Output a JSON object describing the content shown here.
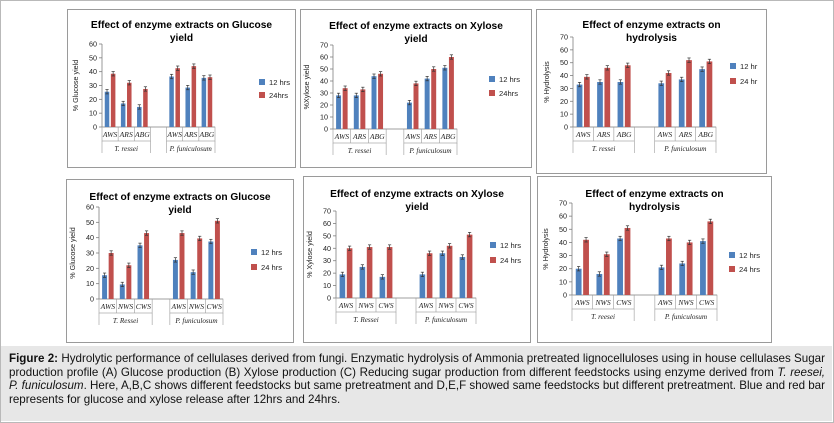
{
  "colors": {
    "blue": "#4f81bd",
    "red": "#c0504d",
    "error": "#333333",
    "axis": "#7f7f7f"
  },
  "caption": {
    "figure_label": "Figure 2:",
    "part1": " Hydrolytic performance of cellulases derived from fungi. Enzymatic hydrolysis of Ammonia pretreated lignocelluloses using in house cellulases Sugar production profile (A) Glucose production (B) Xylose production (C) Reducing sugar production from different feedstocks using enzyme derived from ",
    "species": "T. reesei, P. funiculosum",
    "part2": ". Here, A,B,C shows different feedstocks but same pretreatment and D,E,F showed same feedstocks but different pretreatment. Blue and red bar represents for glucose and xylose release after 12hrs and 24hrs."
  },
  "chart_data": [
    {
      "type": "bar",
      "title": [
        "Effect of enzyme extracts on Glucose",
        "yield"
      ],
      "ylabel": "% Glucose yield",
      "ylim": [
        0,
        60
      ],
      "yticks": [
        0,
        10,
        20,
        30,
        40,
        50,
        60
      ],
      "groups": [
        "T. ressei",
        "P. funiculosum"
      ],
      "categories": [
        "AWS",
        "ARS",
        "ABG",
        "AWS",
        "ARS",
        "ABG"
      ],
      "series": [
        {
          "name": "12 hrs",
          "values": [
            25.5,
            17,
            14.5,
            36.5,
            28.5,
            35.5
          ]
        },
        {
          "name": "24hrs",
          "values": [
            38.5,
            32,
            27.5,
            42.5,
            44,
            36
          ]
        }
      ],
      "legend": "right"
    },
    {
      "type": "bar",
      "title": [
        "Effect of enzyme extracts on Xylose",
        "yield"
      ],
      "ylabel": "%Xylose yield",
      "ylim": [
        0,
        70
      ],
      "yticks": [
        0,
        10,
        20,
        30,
        40,
        50,
        60,
        70
      ],
      "groups": [
        "T. ressei",
        "P. funiculosum"
      ],
      "categories": [
        "AWS",
        "ARS",
        "ABG",
        "AWS",
        "ARS",
        "ABG"
      ],
      "series": [
        {
          "name": "12 hrs",
          "values": [
            28,
            28,
            44,
            22,
            42,
            51
          ]
        },
        {
          "name": "24hrs",
          "values": [
            34,
            33,
            46,
            38,
            50,
            60
          ]
        }
      ],
      "legend": "right"
    },
    {
      "type": "bar",
      "title": [
        "Effect of enzyme extracts on",
        "hydrolysis"
      ],
      "ylabel": "% Hydrolysis",
      "ylim": [
        0,
        70
      ],
      "yticks": [
        0,
        10,
        20,
        30,
        40,
        50,
        60,
        70
      ],
      "groups": [
        "T. ressei",
        "P. funiculosum"
      ],
      "categories": [
        "AWS",
        "ARS",
        "ABG",
        "AWS",
        "ARS",
        "ABG"
      ],
      "series": [
        {
          "name": "12 hr",
          "values": [
            33,
            35,
            35,
            34,
            37,
            45
          ]
        },
        {
          "name": "24 hr",
          "values": [
            39,
            46,
            48,
            42,
            52,
            51
          ]
        }
      ],
      "legend": "right"
    },
    {
      "type": "bar",
      "title": [
        "Effect of enzyme extracts on Glucose",
        "yield"
      ],
      "ylabel": "% Glucose yield",
      "ylim": [
        0,
        60
      ],
      "yticks": [
        0,
        10,
        20,
        30,
        40,
        50,
        60
      ],
      "groups": [
        "T. Ressei",
        "P. funiculosum"
      ],
      "categories": [
        "AWS",
        "NWS",
        "CWS",
        "AWS",
        "NWS",
        "CWS"
      ],
      "series": [
        {
          "name": "12 hrs",
          "values": [
            15.5,
            9.5,
            35,
            25.5,
            17.5,
            37.5
          ]
        },
        {
          "name": "24 hrs",
          "values": [
            30,
            22,
            43,
            43,
            39.5,
            51
          ]
        }
      ],
      "legend": "right"
    },
    {
      "type": "bar",
      "title": [
        "Effect of enzyme extracts on Xylose",
        "yield"
      ],
      "ylabel": "% Xylose yield",
      "ylim": [
        0,
        70
      ],
      "yticks": [
        0,
        10,
        20,
        30,
        40,
        50,
        60,
        70
      ],
      "groups": [
        "T. Ressei",
        "P. funiculosum"
      ],
      "categories": [
        "AWS",
        "NWS",
        "CWS",
        "AWS",
        "NWS",
        "CWS"
      ],
      "series": [
        {
          "name": "12 hrs",
          "values": [
            19,
            25,
            17,
            19,
            36,
            33
          ]
        },
        {
          "name": "24 hrs",
          "values": [
            40,
            41,
            41,
            36,
            42,
            51
          ]
        }
      ],
      "legend": "right"
    },
    {
      "type": "bar",
      "title": [
        "Effect of enzyme extracts on",
        "hydrolysis"
      ],
      "ylabel": "% Hydrolysis",
      "ylim": [
        0,
        70
      ],
      "yticks": [
        0,
        10,
        20,
        30,
        40,
        50,
        60,
        70
      ],
      "groups": [
        "T. reesei",
        "P. funiculosum"
      ],
      "categories": [
        "AWS",
        "NWS",
        "CWS",
        "AWS",
        "NWS",
        "CWS"
      ],
      "series": [
        {
          "name": "12 hrs",
          "values": [
            20,
            16,
            43,
            21,
            24,
            41
          ]
        },
        {
          "name": "24 hrs",
          "values": [
            42,
            31,
            51,
            43,
            40,
            56
          ]
        }
      ],
      "legend": "right"
    }
  ]
}
